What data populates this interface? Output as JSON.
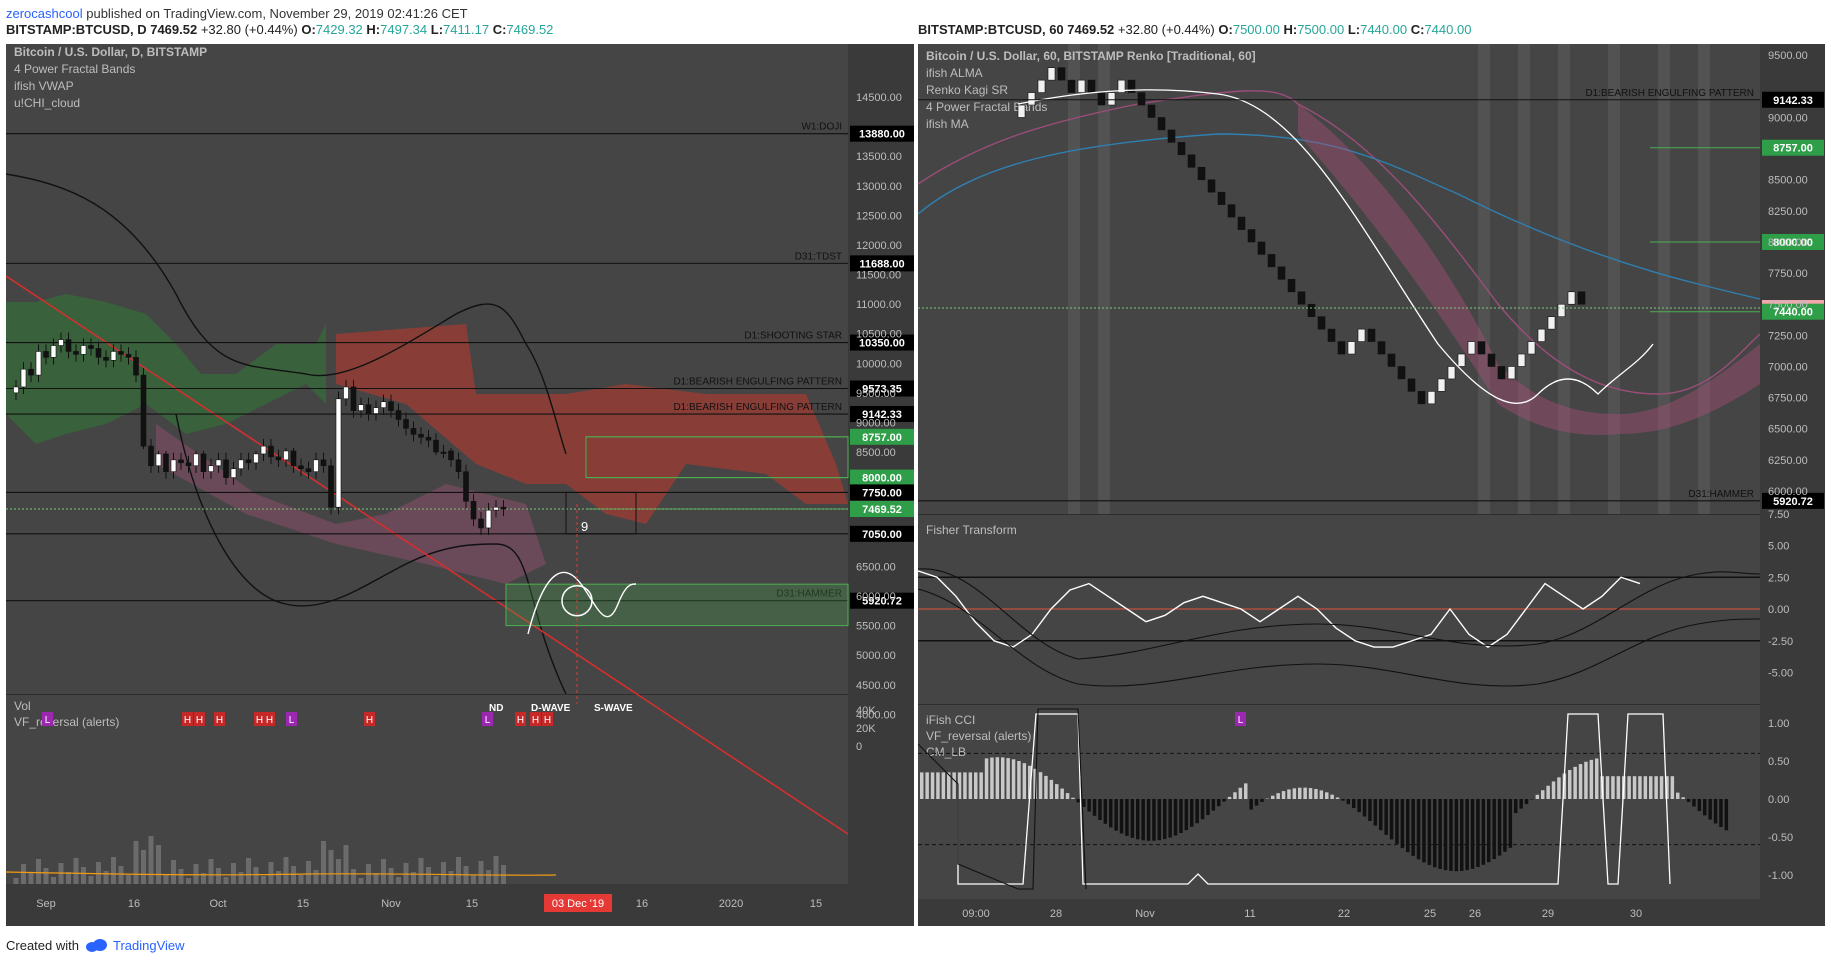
{
  "header": {
    "author": "zerocashcool",
    "published_text": "published on TradingView.com, November 29, 2019 02:41:26 CET"
  },
  "left_header": {
    "symbol": "BITSTAMP:BTCUSD, D",
    "last": "7469.52",
    "change": "+32.80 (+0.44%)",
    "o_label": "O:",
    "o": "7429.32",
    "h_label": "H:",
    "h": "7497.34",
    "l_label": "L:",
    "l": "7411.17",
    "c_label": "C:",
    "c": "7469.52"
  },
  "right_header": {
    "symbol": "BITSTAMP:BTCUSD, 60",
    "last": "7469.52",
    "change": "+32.80 (+0.44%)",
    "o_label": "O:",
    "o": "7500.00",
    "h_label": "H:",
    "h": "7500.00",
    "l_label": "L:",
    "l": "7440.00",
    "c_label": "C:",
    "c": "7440.00"
  },
  "footer": {
    "created_with": "Created with",
    "brand": "TradingView"
  },
  "colors": {
    "panel_bg": "#454545",
    "axis_bg": "#3a3a3a",
    "green_box": "#4caf50",
    "red_cloud": "#c0392b",
    "green_cloud": "#2e7d32",
    "trendline": "#d32f2f",
    "badge_green": "#2e9e48",
    "badge_black": "#000000",
    "badge_pink": "#f4a6ad",
    "date_badge": "#e53935"
  },
  "chart_data": [
    {
      "type": "line",
      "id": "left_daily",
      "legend": [
        "Bitcoin / U.S. Dollar, D, BITSTAMP",
        "4 Power Fractal Bands",
        "ifish VWAP",
        "u!CHI_cloud"
      ],
      "y_ticks": [
        "14500.00",
        "13500.00",
        "13000.00",
        "12500.00",
        "12000.00",
        "11500.00",
        "11000.00",
        "10500.00",
        "10000.00",
        "9500.00",
        "9000.00",
        "8500.00",
        "6500.00",
        "6000.00",
        "5500.00",
        "5000.00",
        "4500.00",
        "4000.00"
      ],
      "x_ticks": [
        "Sep",
        "16",
        "Oct",
        "15",
        "Nov",
        "15",
        "16",
        "2020",
        "15"
      ],
      "date_badge": "03 Dec '19",
      "price_badges": [
        {
          "value": 13880,
          "text": "13880.00",
          "style": "black",
          "label": "W1:DOJI"
        },
        {
          "value": 11688,
          "text": "11688.00",
          "style": "black",
          "label": "D31:TDST"
        },
        {
          "value": 10350,
          "text": "10350.00",
          "style": "black",
          "label": "D1:SHOOTING STAR"
        },
        {
          "value": 9573.35,
          "text": "9573.35",
          "style": "black",
          "label": "D1:BEARISH ENGULFING PATTERN"
        },
        {
          "value": 9142.33,
          "text": "9142.33",
          "style": "black",
          "label": "D1:BEARISH ENGULFING PATTERN"
        },
        {
          "value": 8757,
          "text": "8757.00",
          "style": "green",
          "label": ""
        },
        {
          "value": 8000,
          "text": "8000.00",
          "style": "green",
          "label": ""
        },
        {
          "value": 7750,
          "text": "7750.00",
          "style": "black",
          "label": ""
        },
        {
          "value": 7469.52,
          "text": "7469.52",
          "style": "green",
          "label": ""
        },
        {
          "value": 7050,
          "text": "7050.00",
          "style": "black",
          "label": ""
        },
        {
          "value": 5920.72,
          "text": "5920.72",
          "style": "black",
          "label": "D31:HAMMER"
        }
      ],
      "close": [
        9600,
        9900,
        9800,
        10200,
        10100,
        10300,
        10400,
        10200,
        10150,
        10300,
        10250,
        10100,
        10050,
        10200,
        10150,
        10100,
        9800,
        8600,
        8200,
        8400,
        8100,
        8300,
        8250,
        8200,
        8400,
        8100,
        8200,
        8300,
        8000,
        8150,
        8300,
        8250,
        8400,
        8600,
        8350,
        8300,
        8450,
        8200,
        8150,
        8100,
        8300,
        8200,
        7500,
        9400,
        9600,
        9200,
        9300,
        9150,
        9250,
        9350,
        9200,
        9050,
        8900,
        8800,
        8750,
        8700,
        8500,
        8450,
        8300,
        8100,
        7600,
        7300,
        7150,
        7450,
        7500,
        7469.52
      ],
      "projection_label": "9",
      "volume_panel": {
        "title": "Vol",
        "indicator": "VF_reversal (alerts)",
        "y_ticks": [
          "40K",
          "20K",
          "0"
        ],
        "annotations": [
          "ND",
          "D-WAVE",
          "S-WAVE"
        ],
        "markers": [
          "L",
          "H",
          "H",
          "H",
          "H",
          "H",
          "L",
          "H",
          "L",
          "H",
          "H",
          "H"
        ]
      }
    },
    {
      "type": "line",
      "id": "right_renko_60",
      "legend": [
        "Bitcoin / U.S. Dollar, 60, BITSTAMP Renko [Traditional, 60]",
        "ifish ALMA",
        "Renko Kagi SR",
        "4 Power Fractal Bands",
        "ifish MA"
      ],
      "y_ticks": [
        "9500.00",
        "9000.00",
        "8500.00",
        "8250.00",
        "8000.00",
        "7750.00",
        "7500.00",
        "7250.00",
        "7000.00",
        "6750.00",
        "6500.00",
        "6250.00",
        "6000.00"
      ],
      "x_ticks": [
        "09:00",
        "28",
        "Nov",
        "11",
        "22",
        "25",
        "26",
        "29",
        "30"
      ],
      "price_badges": [
        {
          "value": 9142.33,
          "text": "9142.33",
          "style": "black",
          "label": "D1:BEARISH ENGULFING PATTERN"
        },
        {
          "value": 8757,
          "text": "8757.00",
          "style": "green",
          "label": ""
        },
        {
          "value": 8000,
          "text": "8000.00",
          "style": "green",
          "label": ""
        },
        {
          "value": 7469.52,
          "text": "7469.52",
          "style": "pink",
          "label": ""
        },
        {
          "value": 7440,
          "text": "7440.00",
          "style": "green",
          "label": ""
        },
        {
          "value": 5920.72,
          "text": "5920.72",
          "style": "black",
          "label": "D31:HAMMER"
        }
      ],
      "bricks": [
        9100,
        9200,
        9300,
        9400,
        9300,
        9200,
        9300,
        9200,
        9100,
        9200,
        9300,
        9200,
        9100,
        9000,
        8900,
        8800,
        8700,
        8600,
        8500,
        8400,
        8300,
        8200,
        8100,
        8000,
        7900,
        7800,
        7700,
        7600,
        7500,
        7400,
        7300,
        7200,
        7100,
        7200,
        7300,
        7200,
        7100,
        7000,
        6900,
        6800,
        6700,
        6800,
        6900,
        7000,
        7100,
        7200,
        7100,
        7000,
        6900,
        7000,
        7100,
        7200,
        7300,
        7400,
        7500,
        7600,
        7500
      ]
    },
    {
      "type": "line",
      "id": "fisher_transform",
      "title": "Fisher Transform",
      "y_ticks": [
        "7.50",
        "5.00",
        "2.50",
        "0.00",
        "-2.50",
        "-5.00"
      ],
      "levels": [
        2.5,
        0,
        -2.5
      ],
      "values": [
        3,
        2.5,
        1,
        -1,
        -2.5,
        -3,
        -2,
        0,
        1.5,
        2,
        1,
        0,
        -1,
        -0.5,
        0.5,
        1,
        0.5,
        0,
        -1,
        0,
        1,
        0,
        -1.5,
        -2.5,
        -3,
        -3,
        -2.5,
        -2,
        0,
        -2,
        -3,
        -2,
        0,
        2,
        1,
        0,
        1,
        2.5,
        2
      ]
    },
    {
      "type": "bar",
      "id": "ifish_cci",
      "legend": [
        "iFish CCI",
        "VF_reversal (alerts)",
        "CM_LB"
      ],
      "y_ticks": [
        "1.00",
        "0.50",
        "0.00",
        "-0.50",
        "-1.00"
      ],
      "levels": [
        0.6,
        -0.6
      ],
      "marker": "L"
    }
  ]
}
